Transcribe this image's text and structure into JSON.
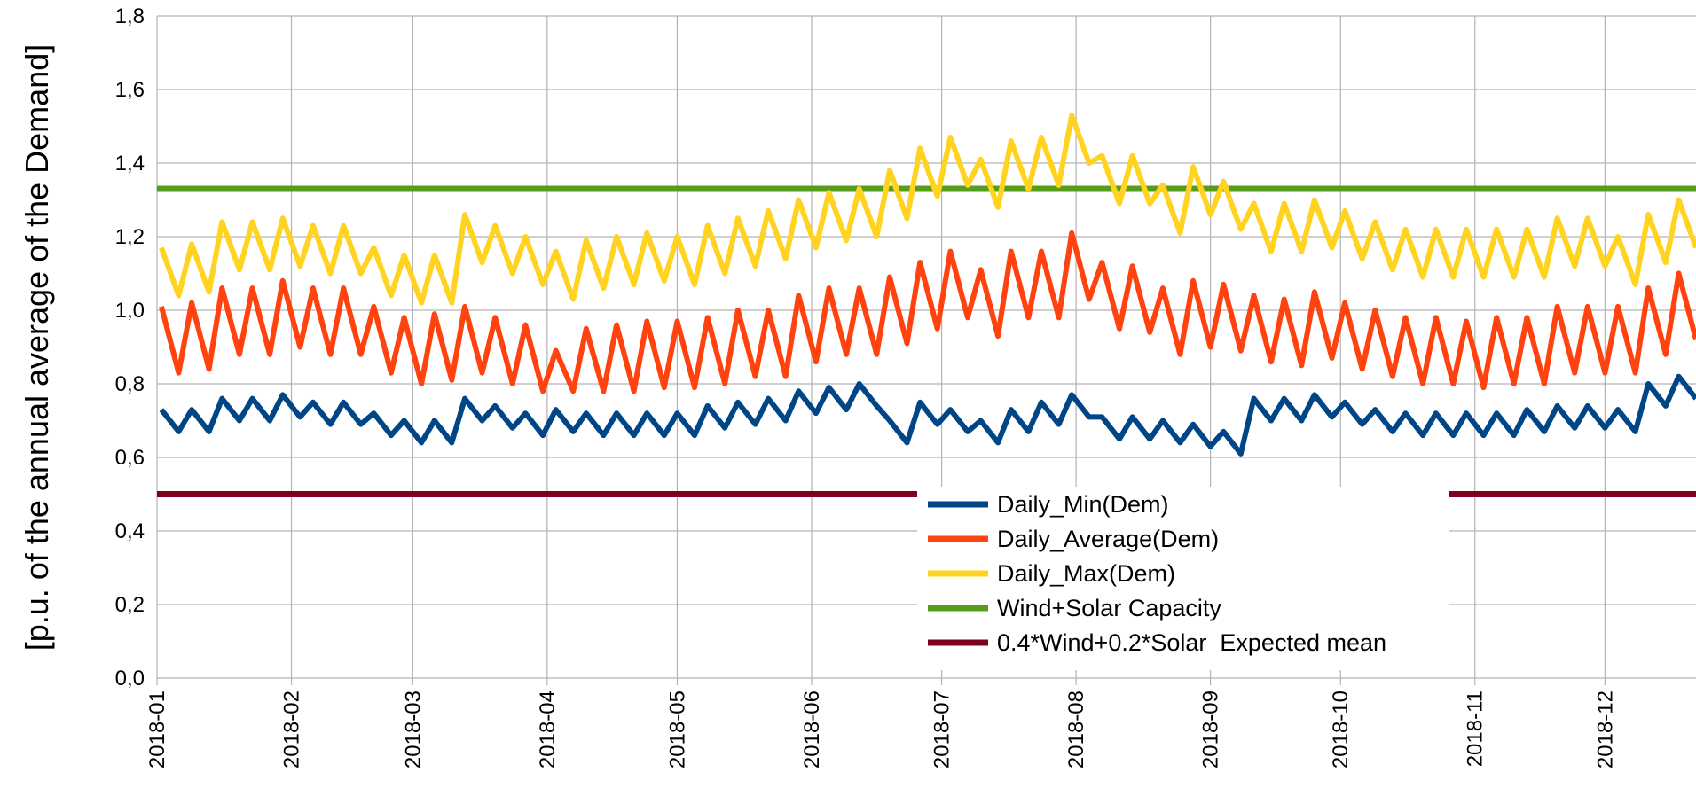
{
  "chart_data": {
    "type": "line",
    "y_label": "[p.u. of the annual average of the Demand]",
    "x": [
      1,
      5,
      8,
      12,
      15,
      19,
      22,
      26,
      29,
      33,
      36,
      40,
      43,
      47,
      50,
      54,
      57,
      61,
      64,
      68,
      71,
      75,
      78,
      82,
      85,
      89,
      92,
      96,
      99,
      103,
      106,
      110,
      113,
      117,
      120,
      124,
      127,
      131,
      134,
      138,
      141,
      145,
      148,
      152,
      155,
      159,
      162,
      166,
      169,
      173,
      176,
      180,
      183,
      187,
      190,
      194,
      197,
      201,
      204,
      208,
      211,
      215,
      218,
      222,
      225,
      229,
      232,
      236,
      239,
      243,
      246,
      250,
      253,
      257,
      260,
      264,
      267,
      271,
      274,
      278,
      281,
      285,
      288,
      292,
      295,
      299,
      302,
      306,
      309,
      313,
      316,
      320,
      323,
      327,
      330,
      334,
      337,
      341,
      344,
      348,
      351,
      355
    ],
    "series": [
      {
        "name": "Daily_Min(Dem)",
        "color": "#004586",
        "values": [
          0.73,
          0.67,
          0.73,
          0.67,
          0.76,
          0.7,
          0.76,
          0.7,
          0.77,
          0.71,
          0.75,
          0.69,
          0.75,
          0.69,
          0.72,
          0.66,
          0.7,
          0.64,
          0.7,
          0.64,
          0.76,
          0.7,
          0.74,
          0.68,
          0.72,
          0.66,
          0.73,
          0.67,
          0.72,
          0.66,
          0.72,
          0.66,
          0.72,
          0.66,
          0.72,
          0.66,
          0.74,
          0.68,
          0.75,
          0.69,
          0.76,
          0.7,
          0.78,
          0.72,
          0.79,
          0.73,
          0.8,
          0.74,
          0.7,
          0.64,
          0.75,
          0.69,
          0.73,
          0.67,
          0.7,
          0.64,
          0.73,
          0.67,
          0.75,
          0.69,
          0.77,
          0.71,
          0.71,
          0.65,
          0.71,
          0.65,
          0.7,
          0.64,
          0.69,
          0.63,
          0.67,
          0.61,
          0.76,
          0.7,
          0.76,
          0.7,
          0.77,
          0.71,
          0.75,
          0.69,
          0.73,
          0.67,
          0.72,
          0.66,
          0.72,
          0.66,
          0.72,
          0.66,
          0.72,
          0.66,
          0.73,
          0.67,
          0.74,
          0.68,
          0.74,
          0.68,
          0.73,
          0.67,
          0.8,
          0.74,
          0.82,
          0.76
        ]
      },
      {
        "name": "Daily_Average(Dem)",
        "color": "#ff420e",
        "values": [
          1.01,
          0.83,
          1.02,
          0.84,
          1.06,
          0.88,
          1.06,
          0.88,
          1.08,
          0.9,
          1.06,
          0.88,
          1.06,
          0.88,
          1.01,
          0.83,
          0.98,
          0.8,
          0.99,
          0.81,
          1.01,
          0.83,
          0.98,
          0.8,
          0.96,
          0.78,
          0.89,
          0.78,
          0.95,
          0.78,
          0.96,
          0.78,
          0.97,
          0.79,
          0.97,
          0.79,
          0.98,
          0.8,
          1.0,
          0.82,
          1.0,
          0.82,
          1.04,
          0.86,
          1.06,
          0.88,
          1.06,
          0.88,
          1.09,
          0.91,
          1.13,
          0.95,
          1.16,
          0.98,
          1.11,
          0.93,
          1.16,
          0.98,
          1.16,
          0.98,
          1.21,
          1.03,
          1.13,
          0.95,
          1.12,
          0.94,
          1.06,
          0.88,
          1.08,
          0.9,
          1.07,
          0.89,
          1.04,
          0.86,
          1.03,
          0.85,
          1.05,
          0.87,
          1.02,
          0.84,
          1.0,
          0.82,
          0.98,
          0.8,
          0.98,
          0.8,
          0.97,
          0.79,
          0.98,
          0.8,
          0.98,
          0.8,
          1.01,
          0.83,
          1.01,
          0.83,
          1.01,
          0.83,
          1.06,
          0.88,
          1.1,
          0.92
        ]
      },
      {
        "name": "Daily_Max(Dem)",
        "color": "#ffd320",
        "values": [
          1.17,
          1.04,
          1.18,
          1.05,
          1.24,
          1.11,
          1.24,
          1.11,
          1.25,
          1.12,
          1.23,
          1.1,
          1.23,
          1.1,
          1.17,
          1.04,
          1.15,
          1.02,
          1.15,
          1.02,
          1.26,
          1.13,
          1.23,
          1.1,
          1.2,
          1.07,
          1.16,
          1.03,
          1.19,
          1.06,
          1.2,
          1.07,
          1.21,
          1.08,
          1.2,
          1.07,
          1.23,
          1.1,
          1.25,
          1.12,
          1.27,
          1.14,
          1.3,
          1.17,
          1.32,
          1.19,
          1.33,
          1.2,
          1.38,
          1.25,
          1.44,
          1.31,
          1.47,
          1.34,
          1.41,
          1.28,
          1.46,
          1.33,
          1.47,
          1.34,
          1.53,
          1.4,
          1.42,
          1.29,
          1.42,
          1.29,
          1.34,
          1.21,
          1.39,
          1.26,
          1.35,
          1.22,
          1.29,
          1.16,
          1.29,
          1.16,
          1.3,
          1.17,
          1.27,
          1.14,
          1.24,
          1.11,
          1.22,
          1.09,
          1.22,
          1.09,
          1.22,
          1.09,
          1.22,
          1.09,
          1.22,
          1.09,
          1.25,
          1.12,
          1.25,
          1.12,
          1.2,
          1.07,
          1.26,
          1.13,
          1.3,
          1.17
        ]
      }
    ],
    "reference_lines": [
      {
        "name": "Wind+Solar Capacity",
        "color": "#579d1c",
        "value": 1.33
      },
      {
        "name": "0.4*Wind+0.2*Solar  Expected mean",
        "color": "#7e0021",
        "value": 0.5
      }
    ],
    "xlim": [
      0,
      355
    ],
    "xticks": [
      {
        "value": 0,
        "label": "2018-01"
      },
      {
        "value": 31,
        "label": "2018-02"
      },
      {
        "value": 59,
        "label": "2018-03"
      },
      {
        "value": 90,
        "label": "2018-04"
      },
      {
        "value": 120,
        "label": "2018-05"
      },
      {
        "value": 151,
        "label": "2018-06"
      },
      {
        "value": 181,
        "label": "2018-07"
      },
      {
        "value": 212,
        "label": "2018-08"
      },
      {
        "value": 243,
        "label": "2018-09"
      },
      {
        "value": 273,
        "label": "2018-10"
      },
      {
        "value": 304,
        "label": "2018-11"
      },
      {
        "value": 334,
        "label": "2018-12"
      }
    ],
    "ylim": [
      0,
      1.8
    ],
    "yticks": [
      {
        "value": 0,
        "label": "0,0"
      },
      {
        "value": 0.2,
        "label": "0,2"
      },
      {
        "value": 0.4,
        "label": "0,4"
      },
      {
        "value": 0.6,
        "label": "0,6"
      },
      {
        "value": 0.8,
        "label": "0,8"
      },
      {
        "value": 1.0,
        "label": "1,0"
      },
      {
        "value": 1.2,
        "label": "1,2"
      },
      {
        "value": 1.4,
        "label": "1,4"
      },
      {
        "value": 1.6,
        "label": "1,6"
      },
      {
        "value": 1.8,
        "label": "1,8"
      }
    ],
    "grid": true
  }
}
